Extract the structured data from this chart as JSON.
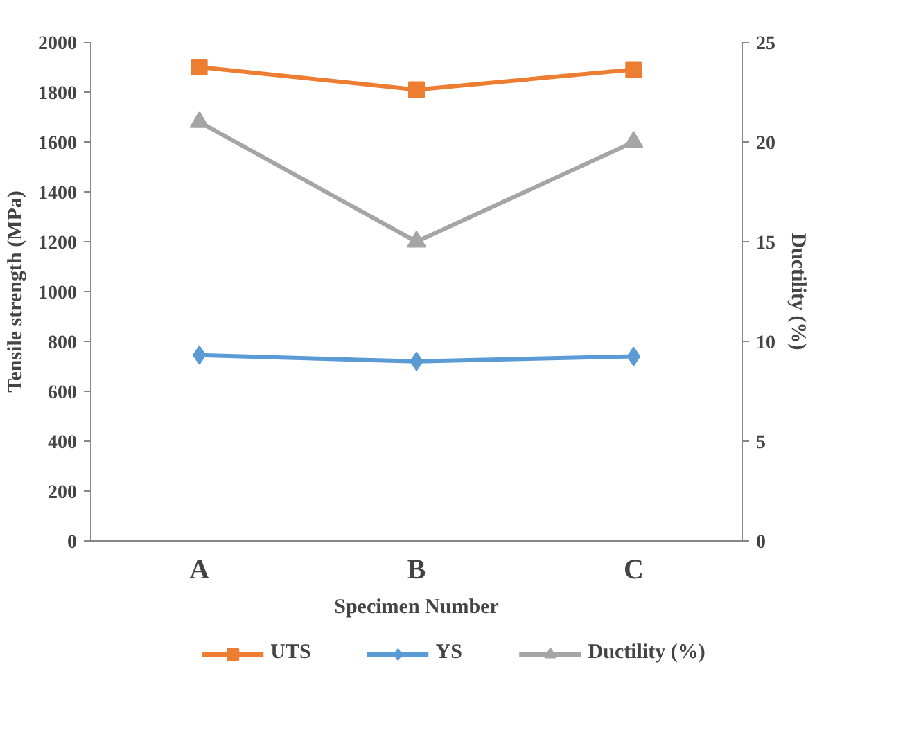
{
  "chart_data": {
    "type": "line",
    "xlabel": "Specimen Number",
    "ylabel": "Tensile strength (MPa)",
    "y2label": "Ductility (%)",
    "categories": [
      "A",
      "B",
      "C"
    ],
    "series": [
      {
        "name": "UTS",
        "color": "#ed7d31",
        "values": [
          1900,
          1810,
          1890
        ],
        "marker": "square"
      },
      {
        "name": "YS",
        "color": "#5b9bd5",
        "values": [
          745,
          720,
          740
        ],
        "marker": "diamond"
      },
      {
        "name": "Ductility (%)",
        "color": "#a5a5a5",
        "values": [
          21,
          15,
          20
        ],
        "marker": "triangle",
        "axis": "y2"
      }
    ],
    "ylim": [
      0,
      2000
    ],
    "yticks": [
      0,
      200,
      400,
      600,
      800,
      1000,
      1200,
      1400,
      1600,
      1800,
      2000
    ],
    "y2lim": [
      0,
      25
    ],
    "y2ticks": [
      0,
      5,
      10,
      15,
      20,
      25
    ],
    "grid": false,
    "legend": "bottom",
    "line_style": "solid"
  }
}
